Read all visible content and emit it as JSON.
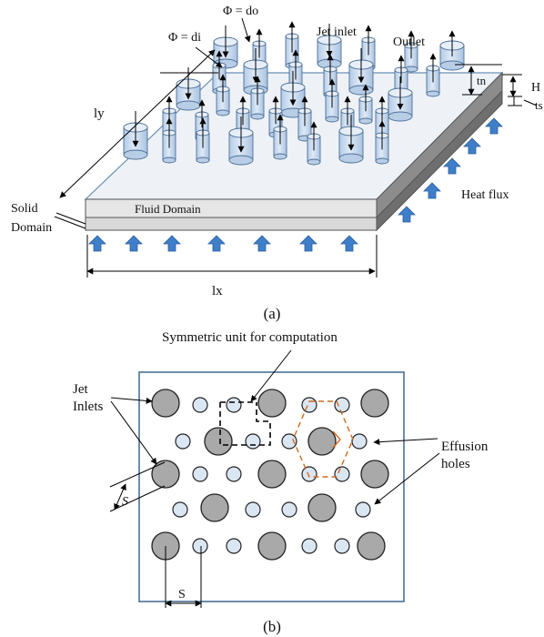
{
  "figure_a": {
    "caption": "(a)",
    "labels": {
      "phi_di": "Φ = di",
      "phi_do": "Φ = do",
      "jet_inlet": "Jet inlet",
      "outlet": "Outlet",
      "tn": "tn",
      "H": "H",
      "ts": "ts",
      "ly": "ly",
      "fluid_domain": "Fluid Domain",
      "solid_domain_line1": "Solid",
      "solid_domain_line2": "Domain",
      "heat_flux": "Heat flux",
      "lx": "lx"
    }
  },
  "figure_b": {
    "caption": "(b)",
    "labels": {
      "symmetric_unit": "Symmetric unit for computation",
      "jet_inlets_line1": "Jet",
      "jet_inlets_line2": "Inlets",
      "effusion_line1": "Effusion",
      "effusion_line2": "holes",
      "s_diag": "S",
      "s_horiz": "S"
    }
  },
  "colors": {
    "jet_fill": "#a9a9a9",
    "effusion_fill": "#dbe6f3",
    "cylinder_fill": "#c5d9ef",
    "arrow_blue": "#3f7ec9",
    "frame": "#4a6f96",
    "hexagon": "#d2691e"
  }
}
